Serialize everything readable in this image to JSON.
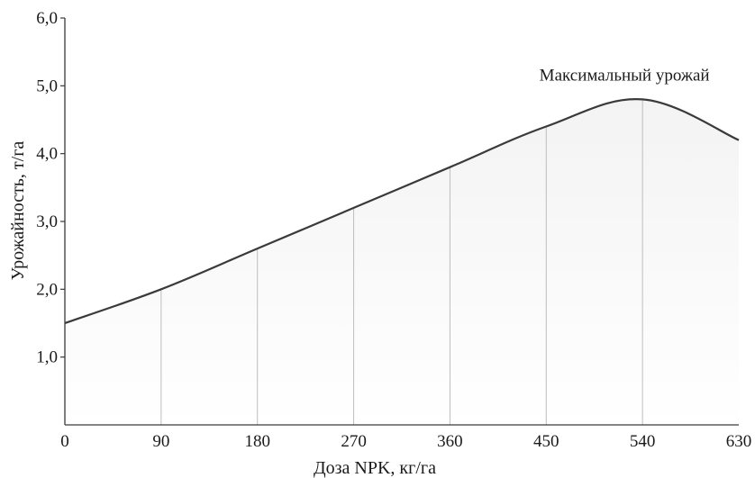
{
  "chart_data": {
    "type": "area",
    "title": "",
    "xlabel": "Доза NPK, кг/га",
    "ylabel": "Урожайность, т/га",
    "xlim": [
      0,
      630
    ],
    "ylim": [
      0,
      6.0
    ],
    "x_ticks": [
      "0",
      "90",
      "180",
      "270",
      "360",
      "450",
      "540",
      "630"
    ],
    "y_ticks": [
      "1,0",
      "2,0",
      "3,0",
      "4,0",
      "5,0",
      "6,0"
    ],
    "x": [
      0,
      90,
      180,
      270,
      360,
      450,
      540,
      630
    ],
    "series": [
      {
        "values": [
          1.5,
          2.0,
          2.6,
          3.2,
          3.8,
          4.4,
          4.8,
          4.2
        ]
      }
    ],
    "annotations": [
      {
        "text": "Максимальный урожай",
        "x": 540,
        "y": 4.8
      }
    ],
    "vertical_lines_at_data_points": true,
    "grid": false,
    "colors": {
      "line": "#3a3a3a",
      "fill_top": "#f3f3f3",
      "fill_bottom": "#ffffff",
      "axis": "#3a3a3a",
      "guides": "#bdbdbd"
    }
  }
}
